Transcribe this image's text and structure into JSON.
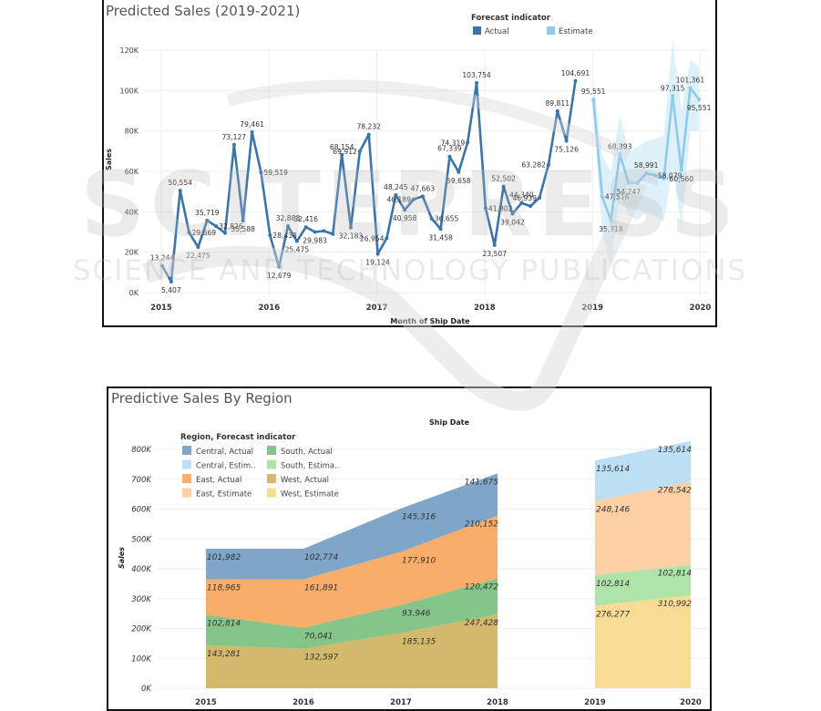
{
  "chart_data": [
    {
      "type": "line",
      "title": "Predicted Sales (2019-2021)",
      "xlabel": "Month of Ship Date",
      "ylabel": "Sales",
      "ylim": [
        0,
        120000
      ],
      "yticks": [
        "0K",
        "20K",
        "40K",
        "60K",
        "80K",
        "100K",
        "120K"
      ],
      "ytick_values": [
        0,
        20000,
        40000,
        60000,
        80000,
        100000,
        120000
      ],
      "xticks": [
        "2015",
        "2016",
        "2017",
        "2018",
        "2019",
        "2020"
      ],
      "grid": true,
      "legend": {
        "title": "Forecast indicator",
        "position": "top-right",
        "entries": [
          {
            "label": "Actual",
            "color": "#3b74a8"
          },
          {
            "label": "Estimate",
            "color": "#8ecbea"
          }
        ]
      },
      "series": [
        {
          "name": "Actual",
          "color": "#3b74a8",
          "start": "2015-01",
          "values": [
            13244,
            5407,
            50554,
            29669,
            22475,
            35719,
            32826,
            29500,
            73127,
            35588,
            79461,
            59519,
            28438,
            12679,
            32883,
            25475,
            32416,
            29983,
            30500,
            29000,
            68154,
            32183,
            69912,
            78232,
            19124,
            26954,
            48245,
            40958,
            46189,
            47663,
            36655,
            31458,
            67339,
            59658,
            74319,
            103754,
            41802,
            23507,
            52502,
            39042,
            44340,
            42800,
            46939,
            63282,
            89811,
            75126,
            104691
          ],
          "labels": [
            "13,244",
            "5,407",
            "50,554",
            "29,669",
            "22,475",
            "35,719",
            "32,826",
            "",
            "73,127",
            "35,588",
            "79,461",
            "59,519",
            "28,438",
            "12,679",
            "32,883",
            "25,475",
            "32,416",
            "29,983",
            "",
            "",
            "68,154",
            "32,183",
            "69,912",
            "78,232",
            "19,124",
            "26,954",
            "48,245",
            "40,958",
            "46,189",
            "47,663",
            "36,655",
            "31,458",
            "67,339",
            "59,658",
            "74,319",
            "103,754",
            "41,802",
            "23,507",
            "52,502",
            "39,042",
            "44,340",
            "",
            "46,939",
            "63,282",
            "89,811",
            "75,126",
            "104,691"
          ]
        },
        {
          "name": "Estimate",
          "color": "#8ecbea",
          "start": "2019-01",
          "values": [
            95551,
            47516,
            35718,
            68393,
            54247,
            54247,
            58991,
            58079,
            56500,
            97315,
            60560,
            101361,
            95551
          ],
          "labels": [
            "95,551",
            "47,516",
            "35,718",
            "68,393",
            "54,247",
            "",
            "58,991",
            "58,079",
            "",
            "97,315",
            "60,560",
            "101,361",
            "95,551"
          ],
          "band_upper": [
            106000,
            68000,
            60000,
            88000,
            70000,
            72000,
            75000,
            76000,
            78000,
            125000,
            90000,
            115000,
            112000
          ],
          "band_lower": [
            88000,
            30000,
            12000,
            48000,
            38000,
            36000,
            40000,
            38000,
            35000,
            62000,
            32000,
            80000,
            80000
          ]
        }
      ]
    },
    {
      "type": "area",
      "title": "Predictive Sales By Region",
      "header": "Ship Date",
      "xlabel": "",
      "ylabel": "Sales",
      "ylim": [
        0,
        800000
      ],
      "yticks": [
        "0K",
        "100K",
        "200K",
        "300K",
        "400K",
        "500K",
        "600K",
        "700K",
        "800K"
      ],
      "ytick_values": [
        0,
        100000,
        200000,
        300000,
        400000,
        500000,
        600000,
        700000,
        800000
      ],
      "categories": [
        "2015",
        "2016",
        "2017",
        "2018",
        "2019",
        "2020"
      ],
      "stacked": true,
      "grid": true,
      "legend": {
        "title": "Region, Forecast indicator",
        "position": "top-left",
        "entries": [
          {
            "label": "Central, Actual",
            "color": "#7fa6c9"
          },
          {
            "label": "South, Actual",
            "color": "#86c589"
          },
          {
            "label": "Central, Estim..",
            "color": "#bcdff3"
          },
          {
            "label": "South, Estima..",
            "color": "#aee3a9"
          },
          {
            "label": "East, Actual",
            "color": "#f9ad6b"
          },
          {
            "label": "West, Actual",
            "color": "#d4b86c"
          },
          {
            "label": "East, Estimate",
            "color": "#fdd0a6"
          },
          {
            "label": "West, Estimate",
            "color": "#f8dc93"
          }
        ]
      },
      "segments": [
        {
          "name": "Actual",
          "categories": [
            "2015",
            "2016",
            "2017",
            "2018"
          ],
          "series": [
            {
              "name": "West, Actual",
              "color": "#d4b86c",
              "values": [
                143281,
                132597,
                185135,
                247428
              ],
              "labels": [
                "143,281",
                "132,597",
                "185,135",
                "247,428"
              ]
            },
            {
              "name": "South, Actual",
              "color": "#86c589",
              "values": [
                102814,
                70041,
                93946,
                120472
              ],
              "labels": [
                "102,814",
                "70,041",
                "93,946",
                "120,472"
              ]
            },
            {
              "name": "East, Actual",
              "color": "#f9ad6b",
              "values": [
                118965,
                161891,
                177910,
                210152
              ],
              "labels": [
                "118,965",
                "161,891",
                "177,910",
                "210,152"
              ]
            },
            {
              "name": "Central, Actual",
              "color": "#7fa6c9",
              "values": [
                101982,
                102774,
                145316,
                141675
              ],
              "labels": [
                "101,982",
                "102,774",
                "145,316",
                "141,675"
              ]
            }
          ]
        },
        {
          "name": "Estimate",
          "categories": [
            "2019",
            "2020"
          ],
          "series": [
            {
              "name": "West, Estimate",
              "color": "#f8dc93",
              "values": [
                276277,
                310992
              ],
              "labels": [
                "276,277",
                "310,992"
              ]
            },
            {
              "name": "South, Estima..",
              "color": "#aee3a9",
              "values": [
                102814,
                102814
              ],
              "labels": [
                "102,814",
                "102,814"
              ]
            },
            {
              "name": "East, Estimate",
              "color": "#fdd0a6",
              "values": [
                248146,
                278542
              ],
              "labels": [
                "248,146",
                "278,542"
              ]
            },
            {
              "name": "Central, Estim..",
              "color": "#bcdff3",
              "values": [
                135614,
                135614
              ],
              "labels": [
                "135,614",
                "135,614"
              ]
            }
          ]
        }
      ]
    }
  ],
  "watermark": {
    "line1": "SCITEPRESS",
    "line2": "SCIENCE AND TECHNOLOGY PUBLICATIONS"
  }
}
